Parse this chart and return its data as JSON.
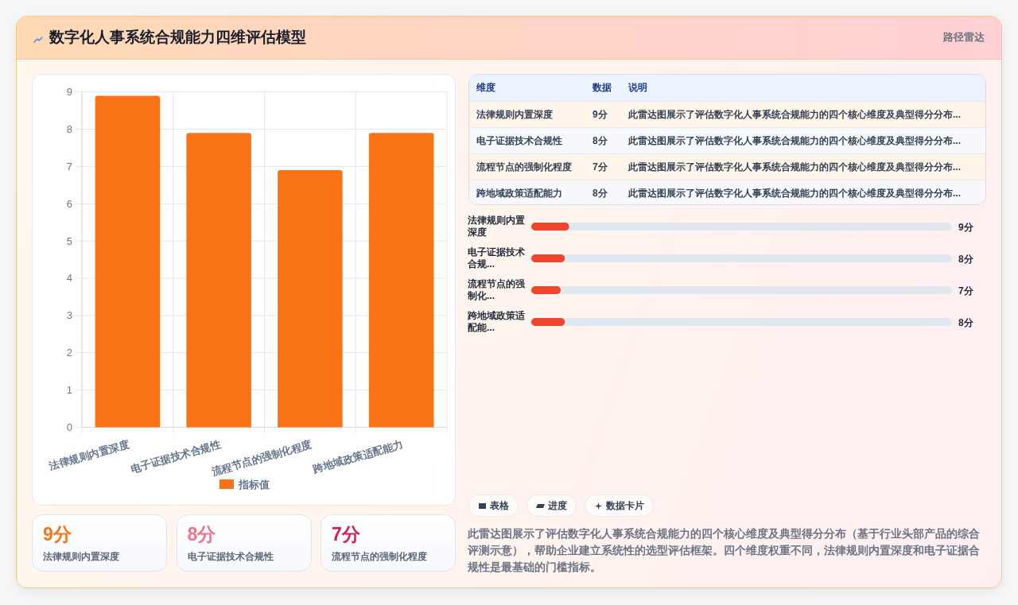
{
  "chart_data": [
    {
      "type": "other",
      "title": "数字化人事系统合规能力四维评估模型",
      "annotations": [
        "路径雷达"
      ]
    },
    {
      "type": "bar",
      "categories": [
        "法律规则内置深度",
        "电子证据技术合规性",
        "流程节点的强制化程度",
        "跨地域政策适配能力"
      ],
      "series": [
        {
          "name": "指标值",
          "color": "#f97316",
          "values": [
            8.9,
            7.9,
            6.9,
            7.9
          ]
        }
      ],
      "ylim": [
        0,
        9
      ],
      "yticks": [
        0,
        1,
        2,
        3,
        4,
        5,
        6,
        7,
        8,
        9
      ],
      "grid": true,
      "legend": "bottom"
    },
    {
      "type": "other",
      "annotations": [
        "维度",
        "数据",
        "说明",
        "法律规则内置深度",
        "9分",
        "此雷达图展示了评估数字化人事系统合规能力的四个核心维度及典型得分分布...",
        "电子证据技术合规性",
        "8分",
        "此雷达图展示了评估数字化人事系统合规能力的四个核心维度及典型得分分布...",
        "流程节点的强制化程度",
        "7分",
        "此雷达图展示了评估数字化人事系统合规能力的四个核心维度及典型得分分布...",
        "跨地域政策适配能力",
        "8分",
        "此雷达图展示了评估数字化人事系统合规能力的四个核心维度及典型得分分布..."
      ]
    },
    {
      "type": "bar",
      "orientation": "horizontal",
      "categories": [
        "法律规则内置深度",
        "电子证据技术合规...",
        "流程节点的强制化...",
        "跨地域政策适配能..."
      ],
      "values": [
        9,
        8,
        7,
        8
      ],
      "value_labels": [
        "9分",
        "8分",
        "7分",
        "8分"
      ],
      "color": "#f0452e",
      "xlim": [
        0,
        100
      ],
      "tick_labels": "y"
    },
    {
      "type": "other",
      "annotations": [
        "9分",
        "法律规则内置深度",
        "8分",
        "电子证据技术合规性",
        "7分",
        "流程节点的强制化程度"
      ],
      "colors": [
        "#f97316",
        "#f2708a",
        "#d21f4f"
      ]
    },
    {
      "type": "other",
      "annotations": [
        "表格",
        "进度",
        "数据卡片",
        "此雷达图展示了评估数字化人事系统合规能力的四个核心维度及典型得分分布（基于行业头部产品的综合评测示意），帮助企业建立系统性的选型评估框架。四个维度权重不同，法律规则内置深度和电子证据合规性是最基础的门槛指标。"
      ]
    }
  ]
}
